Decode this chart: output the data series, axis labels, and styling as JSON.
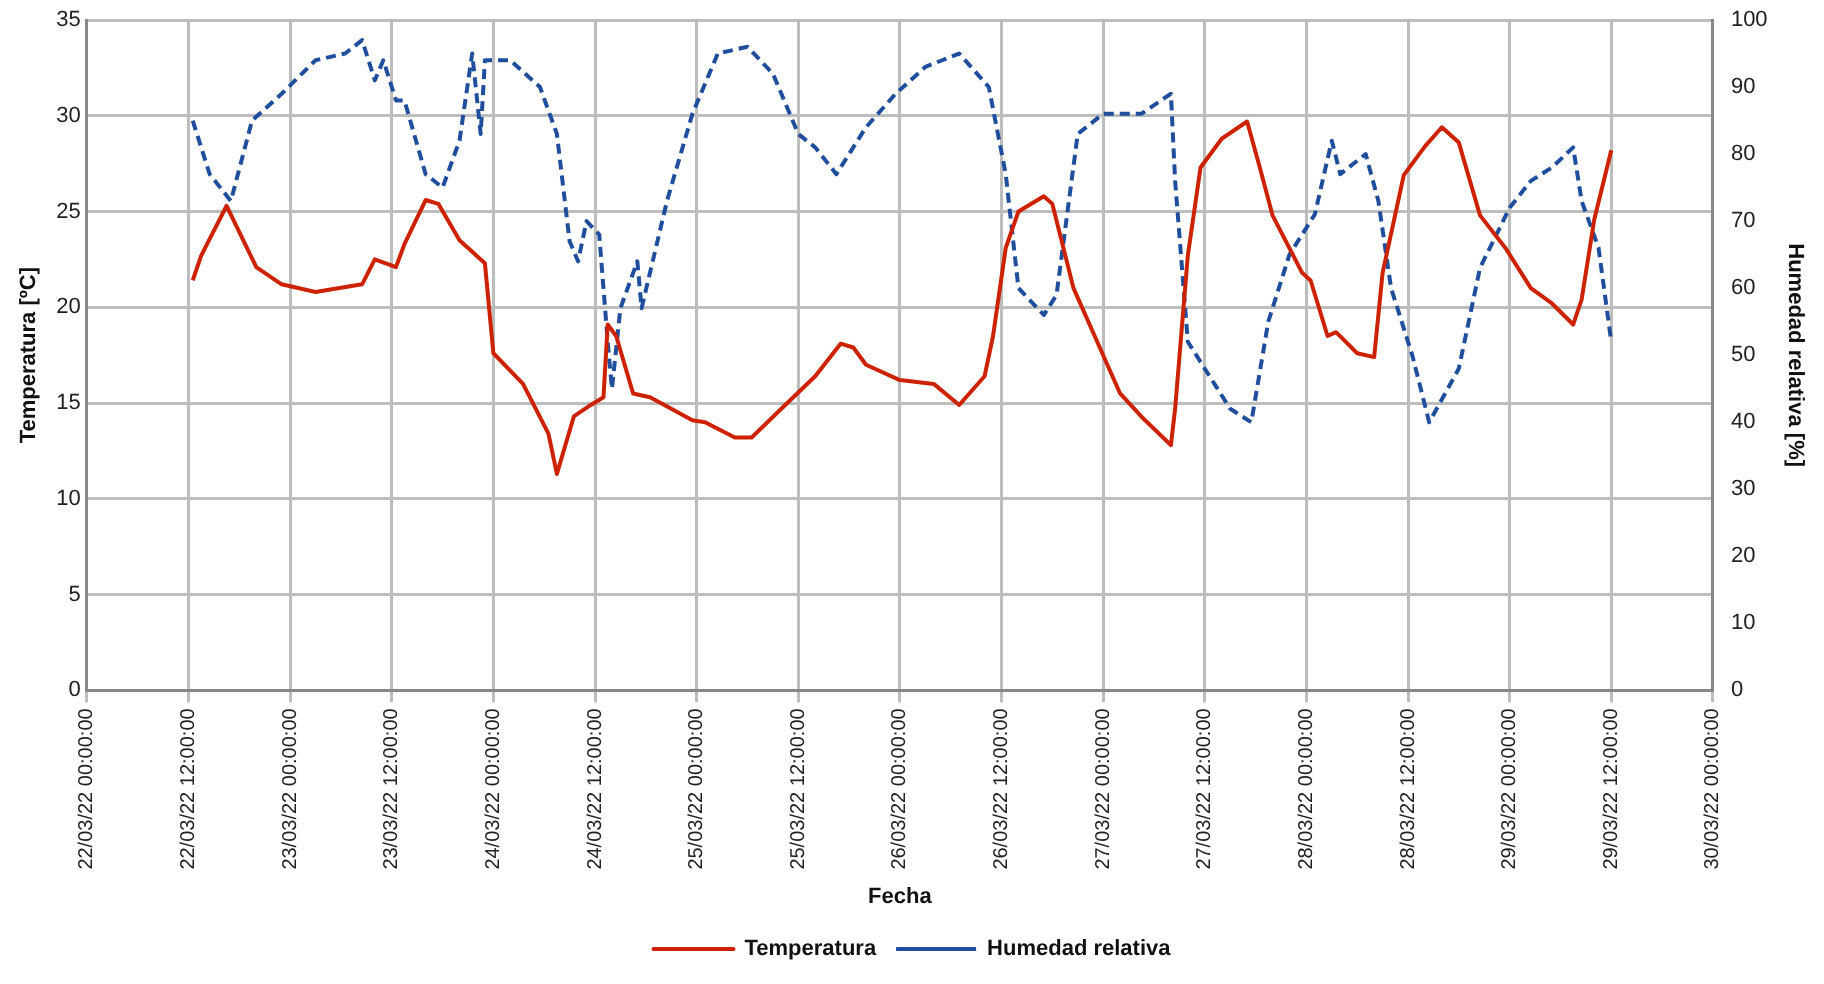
{
  "chart_data": {
    "type": "line",
    "xlabel": "Fecha",
    "ylabel": "Temperatura [ºC]",
    "y2label": "Humedad relativa [%]",
    "xlim": [
      "--03-22T00:00",
      "--03-30T00:00"
    ],
    "xticks": [
      {
        "value": "--03-22T00:00",
        "label": "22/03/22 00:00:00"
      },
      {
        "value": "--03-22T12:00",
        "label": "22/03/22 12:00:00"
      },
      {
        "value": "--03-23T00:00",
        "label": "23/03/22 00:00:00"
      },
      {
        "value": "--03-23T12:00",
        "label": "23/03/22 12:00:00"
      },
      {
        "value": "--03-24T00:00",
        "label": "24/03/22 00:00:00"
      },
      {
        "value": "--03-24T12:00",
        "label": "24/03/22 12:00:00"
      },
      {
        "value": "--03-25T00:00",
        "label": "25/03/22 00:00:00"
      },
      {
        "value": "--03-25T12:00",
        "label": "25/03/22 12:00:00"
      },
      {
        "value": "--03-26T00:00",
        "label": "26/03/22 00:00:00"
      },
      {
        "value": "--03-26T12:00",
        "label": "26/03/22 12:00:00"
      },
      {
        "value": "--03-27T00:00",
        "label": "27/03/22 00:00:00"
      },
      {
        "value": "--03-27T12:00",
        "label": "27/03/22 12:00:00"
      },
      {
        "value": "--03-28T00:00",
        "label": "28/03/22 00:00:00"
      },
      {
        "value": "--03-28T12:00",
        "label": "28/03/22 12:00:00"
      },
      {
        "value": "--03-29T00:00",
        "label": "29/03/22 00:00:00"
      },
      {
        "value": "--03-29T12:00",
        "label": "29/03/22 12:00:00"
      },
      {
        "value": "--03-30T00:00",
        "label": "30/03/22 00:00:00"
      }
    ],
    "ylim": [
      0,
      35
    ],
    "yticks": [
      0,
      5,
      10,
      15,
      20,
      25,
      30,
      35
    ],
    "y2lim": [
      0,
      100
    ],
    "y2ticks": [
      0,
      10,
      20,
      30,
      40,
      50,
      60,
      70,
      80,
      90,
      100
    ],
    "grid": true,
    "legend": "bottom",
    "marker": "none",
    "series": [
      {
        "name": "Temperatura",
        "color": "#cc2200",
        "line_style": "solid",
        "x": [
          "--03-22T12:30",
          "--03-22T13:30",
          "--03-22T16:30",
          "--03-22T20:00",
          "--03-22T23:00",
          "--03-23T03:00",
          "--03-23T08:30",
          "--03-23T10:00",
          "--03-23T12:30",
          "--03-23T13:30",
          "--03-23T16:00",
          "--03-23T17:30",
          "--03-23T20:00",
          "--03-23T23:00",
          "--03-24T00:00",
          "--03-24T03:30",
          "--03-24T06:30",
          "--03-24T07:30",
          "--03-24T09:30",
          "--03-24T11:30",
          "--03-24T13:00",
          "--03-24T13:30",
          "--03-24T14:30",
          "--03-24T16:30",
          "--03-24T18:30",
          "--03-24T23:30",
          "--03-25T01:00",
          "--03-25T04:30",
          "--03-25T06:30",
          "--03-25T10:00",
          "--03-25T14:00",
          "--03-25T17:00",
          "--03-25T18:30",
          "--03-25T20:00",
          "--03-26T00:00",
          "--03-26T04:00",
          "--03-26T07:00",
          "--03-26T10:00",
          "--03-26T11:00",
          "--03-26T12:30",
          "--03-26T14:00",
          "--03-26T17:00",
          "--03-26T18:00",
          "--03-26T20:30",
          "--03-26T23:00",
          "--03-27T02:00",
          "--03-27T04:30",
          "--03-27T08:00",
          "--03-27T08:30",
          "--03-27T10:00",
          "--03-27T11:30",
          "--03-27T14:00",
          "--03-27T17:00",
          "--03-27T18:30",
          "--03-27T20:00",
          "--03-27T23:30",
          "--03-28T00:30",
          "--03-28T02:30",
          "--03-28T03:30",
          "--03-28T06:00",
          "--03-28T08:00",
          "--03-28T09:00",
          "--03-28T11:30",
          "--03-28T14:00",
          "--03-28T16:00",
          "--03-28T18:00",
          "--03-28T20:30",
          "--03-28T23:30",
          "--03-29T02:30",
          "--03-29T05:00",
          "--03-29T07:30",
          "--03-29T08:30",
          "--03-29T10:00",
          "--03-29T12:00"
        ],
        "values": [
          21.4,
          22.7,
          25.3,
          22.1,
          21.2,
          20.8,
          21.2,
          22.5,
          22.1,
          23.3,
          25.6,
          25.4,
          23.5,
          22.3,
          17.6,
          16.0,
          13.4,
          11.3,
          14.3,
          14.9,
          15.3,
          19.1,
          18.5,
          15.5,
          15.3,
          14.1,
          14.0,
          13.2,
          13.2,
          14.7,
          16.4,
          18.1,
          17.9,
          17.0,
          16.2,
          16.0,
          14.9,
          16.4,
          18.5,
          23.1,
          25.0,
          25.8,
          25.4,
          21.0,
          18.5,
          15.5,
          14.3,
          12.8,
          14.7,
          22.7,
          27.3,
          28.8,
          29.7,
          27.3,
          24.8,
          21.8,
          21.4,
          18.5,
          18.7,
          17.6,
          17.4,
          21.8,
          26.9,
          28.4,
          29.4,
          28.6,
          24.8,
          23.1,
          21.0,
          20.2,
          19.1,
          20.4,
          24.6,
          28.2
        ]
      },
      {
        "name": "Humedad relativa",
        "color": "#1f4e9c",
        "line_style": "dashed",
        "axis": "y2",
        "x": [
          "--03-22T12:30",
          "--03-22T14:30",
          "--03-22T17:00",
          "--03-22T19:30",
          "--03-22T23:00",
          "--03-23T03:00",
          "--03-23T06:30",
          "--03-23T08:30",
          "--03-23T10:00",
          "--03-23T11:00",
          "--03-23T12:30",
          "--03-23T13:30",
          "--03-23T16:00",
          "--03-23T18:00",
          "--03-23T20:00",
          "--03-23T21:30",
          "--03-23T22:30",
          "--03-23T23:00",
          "--03-24T02:00",
          "--03-24T05:30",
          "--03-24T07:30",
          "--03-24T09:00",
          "--03-24T10:00",
          "--03-24T11:00",
          "--03-24T12:30",
          "--03-24T13:30",
          "--03-24T14:00",
          "--03-24T15:00",
          "--03-24T17:00",
          "--03-24T17:30",
          "--03-24T19:00",
          "--03-24T20:30",
          "--03-24T23:30",
          "--03-25T02:30",
          "--03-25T06:00",
          "--03-25T09:00",
          "--03-25T12:00",
          "--03-25T14:00",
          "--03-25T16:30",
          "--03-25T20:00",
          "--03-25T23:30",
          "--03-26T03:00",
          "--03-26T07:00",
          "--03-26T10:30",
          "--03-26T12:30",
          "--03-26T14:00",
          "--03-26T17:00",
          "--03-26T18:30",
          "--03-26T21:00",
          "--03-27T00:00",
          "--03-27T04:30",
          "--03-27T08:00",
          "--03-27T08:30",
          "--03-27T10:00",
          "--03-27T12:30",
          "--03-27T15:00",
          "--03-27T17:30",
          "--03-27T19:30",
          "--03-27T22:00",
          "--03-28T01:00",
          "--03-28T03:00",
          "--03-28T04:00",
          "--03-28T07:00",
          "--03-28T08:30",
          "--03-28T10:00",
          "--03-28T12:30",
          "--03-28T14:30",
          "--03-28T18:00",
          "--03-28T20:30",
          "--03-29T00:00",
          "--03-29T02:30",
          "--03-29T05:00",
          "--03-29T07:30",
          "--03-29T08:30",
          "--03-29T10:30",
          "--03-29T12:00"
        ],
        "values": [
          85,
          77,
          73,
          85,
          89,
          94,
          95,
          97,
          91,
          94,
          88,
          88,
          77,
          75,
          82,
          95,
          83,
          94,
          94,
          90,
          83,
          67,
          64,
          70,
          68,
          52,
          45,
          57,
          64,
          57,
          65,
          73,
          86,
          95,
          96,
          92,
          83,
          81,
          77,
          84,
          89,
          93,
          95,
          90,
          77,
          60,
          56,
          59,
          83,
          86,
          86,
          89,
          76,
          52,
          47,
          42,
          40,
          55,
          65,
          71,
          82,
          77,
          80,
          73,
          60,
          50,
          40,
          48,
          63,
          72,
          76,
          78,
          81,
          73,
          66,
          52
        ]
      }
    ]
  }
}
